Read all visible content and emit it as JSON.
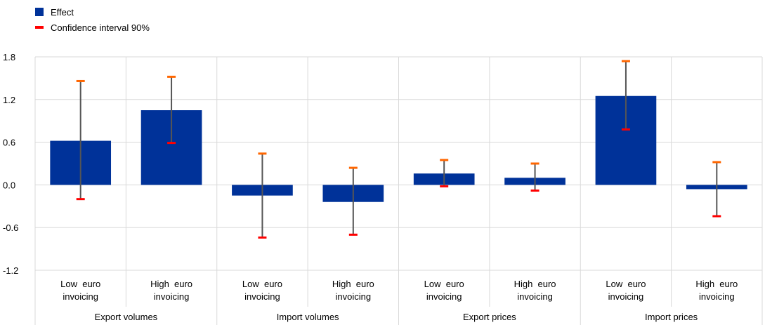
{
  "legend": {
    "effect_label": "Effect",
    "ci_label": "Confidence interval 90%"
  },
  "colors": {
    "bar": "#003299",
    "whisker": "#555555",
    "ci_cap": "#ff0000",
    "ci_cap_alt": "#ff6600",
    "grid": "#d9d9d9"
  },
  "chart_data": {
    "type": "bar",
    "yticks": [
      "1.8",
      "1.2",
      "0.6",
      "0.0",
      "-0.6",
      "-1.2"
    ],
    "ylim": [
      -1.2,
      1.8
    ],
    "ytick_values": [
      1.8,
      1.2,
      0.6,
      0.0,
      -0.6,
      -1.2
    ],
    "groups": [
      "Export volumes",
      "Import volumes",
      "Export prices",
      "Import prices"
    ],
    "categories": [
      {
        "group": 0,
        "label_line1": "Low  euro",
        "label_line2": "invoicing",
        "value": 0.62,
        "ci_low": -0.2,
        "ci_high": 1.46
      },
      {
        "group": 0,
        "label_line1": "High  euro",
        "label_line2": "invoicing",
        "value": 1.05,
        "ci_low": 0.59,
        "ci_high": 1.52
      },
      {
        "group": 1,
        "label_line1": "Low  euro",
        "label_line2": "invoicing",
        "value": -0.15,
        "ci_low": -0.74,
        "ci_high": 0.44
      },
      {
        "group": 1,
        "label_line1": "High  euro",
        "label_line2": "invoicing",
        "value": -0.24,
        "ci_low": -0.7,
        "ci_high": 0.24
      },
      {
        "group": 2,
        "label_line1": "Low  euro",
        "label_line2": "invoicing",
        "value": 0.16,
        "ci_low": -0.02,
        "ci_high": 0.35
      },
      {
        "group": 2,
        "label_line1": "High  euro",
        "label_line2": "invoicing",
        "value": 0.1,
        "ci_low": -0.08,
        "ci_high": 0.3
      },
      {
        "group": 3,
        "label_line1": "Low  euro",
        "label_line2": "invoicing",
        "value": 1.25,
        "ci_low": 0.78,
        "ci_high": 1.74
      },
      {
        "group": 3,
        "label_line1": "High  euro",
        "label_line2": "invoicing",
        "value": -0.06,
        "ci_low": -0.44,
        "ci_high": 0.32
      }
    ]
  }
}
